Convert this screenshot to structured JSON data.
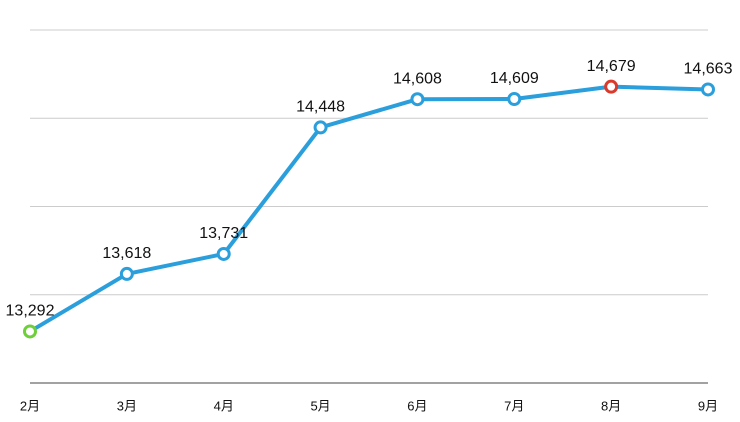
{
  "chart_data": {
    "type": "line",
    "categories": [
      "2月",
      "3月",
      "4月",
      "5月",
      "6月",
      "7月",
      "8月",
      "9月"
    ],
    "series": [
      {
        "color": "#2b9fdc",
        "values": [
          13292,
          13618,
          13731,
          14448,
          14608,
          14609,
          14679,
          14663
        ],
        "value_labels": [
          "13,292",
          "13,618",
          "13,731",
          "14,448",
          "14,608",
          "14,609",
          "14,679",
          "14,663"
        ],
        "marker_colors": [
          "#6fcf3a",
          "#2b9fdc",
          "#2b9fdc",
          "#2b9fdc",
          "#2b9fdc",
          "#2b9fdc",
          "#d93a2b",
          "#2b9fdc"
        ]
      }
    ],
    "ylim": [
      13000,
      15000
    ],
    "yticks": [
      13000,
      13500,
      14000,
      14500,
      15000
    ],
    "grid": true
  }
}
